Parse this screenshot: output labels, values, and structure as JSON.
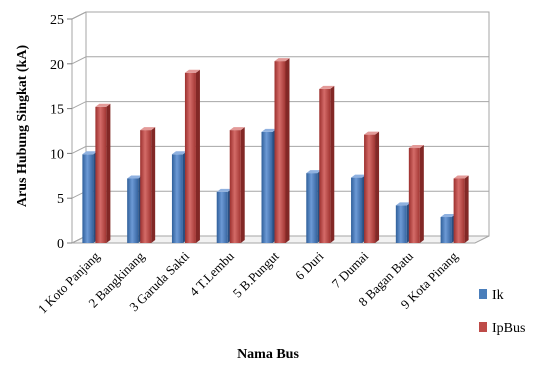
{
  "chart_data": {
    "type": "bar",
    "categories": [
      "1 Koto Panjang",
      "2 Bangkinang",
      "3 Garuda Sakti",
      "4 T.Lembu",
      "5 B.Pungut",
      "6 Duri",
      "7 Dumai",
      "8 Bagan Batu",
      "9 Kota Pinang"
    ],
    "series": [
      {
        "name": "Ik",
        "values": [
          9.9,
          7.2,
          9.9,
          5.7,
          12.4,
          7.8,
          7.3,
          4.2,
          2.9
        ],
        "color": "#4a7ebb"
      },
      {
        "name": "IpBus",
        "values": [
          15.2,
          12.6,
          19.0,
          12.6,
          20.3,
          17.2,
          12.1,
          10.6,
          7.2
        ],
        "color": "#be4b48"
      }
    ],
    "title": "",
    "xlabel": "Nama Bus",
    "ylabel": "Arus Hubung Singkat (kA)",
    "ylim": [
      0,
      25
    ],
    "yticks": [
      0,
      5,
      10,
      15,
      20,
      25
    ],
    "grid": true,
    "legend_position": "right"
  }
}
